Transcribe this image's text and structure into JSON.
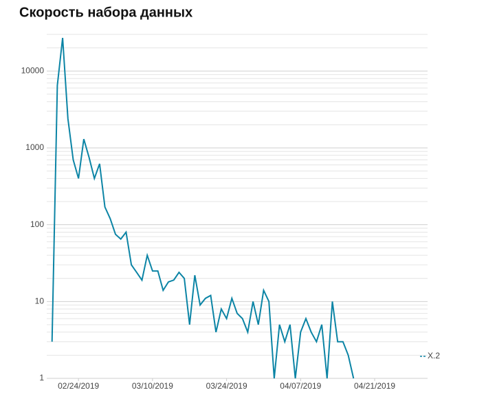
{
  "chart_data": {
    "type": "line",
    "title": "Скорость набора данных",
    "x": [
      "02/19/2019",
      "02/20/2019",
      "02/21/2019",
      "02/22/2019",
      "02/23/2019",
      "02/24/2019",
      "02/25/2019",
      "02/26/2019",
      "02/27/2019",
      "02/28/2019",
      "03/01/2019",
      "03/02/2019",
      "03/03/2019",
      "03/04/2019",
      "03/05/2019",
      "03/06/2019",
      "03/07/2019",
      "03/08/2019",
      "03/09/2019",
      "03/10/2019",
      "03/11/2019",
      "03/12/2019",
      "03/13/2019",
      "03/14/2019",
      "03/15/2019",
      "03/16/2019",
      "03/17/2019",
      "03/18/2019",
      "03/19/2019",
      "03/20/2019",
      "03/21/2019",
      "03/22/2019",
      "03/23/2019",
      "03/24/2019",
      "03/25/2019",
      "03/26/2019",
      "03/27/2019",
      "03/28/2019",
      "03/29/2019",
      "03/30/2019",
      "03/31/2019",
      "04/01/2019",
      "04/02/2019",
      "04/03/2019",
      "04/04/2019",
      "04/05/2019",
      "04/06/2019",
      "04/07/2019",
      "04/08/2019",
      "04/09/2019",
      "04/10/2019",
      "04/11/2019",
      "04/12/2019",
      "04/13/2019",
      "04/14/2019",
      "04/15/2019",
      "04/16/2019",
      "04/17/2019"
    ],
    "series": [
      {
        "name": "X.2",
        "color": "#0b84a5",
        "values": [
          3,
          6500,
          27000,
          2400,
          700,
          400,
          1300,
          750,
          400,
          620,
          170,
          120,
          75,
          65,
          80,
          30,
          24,
          19,
          40,
          25,
          25,
          14,
          18,
          19,
          24,
          20,
          5,
          22,
          9,
          11,
          12,
          4,
          8,
          6,
          11,
          7,
          6,
          4,
          10,
          5,
          14,
          10,
          1,
          5,
          3,
          5,
          1,
          4,
          6,
          4,
          3,
          5,
          1,
          10,
          3,
          3,
          2,
          1
        ]
      }
    ],
    "xlim": [
      "02/18/2019",
      "05/01/2019"
    ],
    "xticks": [
      "02/24/2019",
      "03/10/2019",
      "03/24/2019",
      "04/07/2019",
      "04/21/2019"
    ],
    "ylim": [
      1,
      30000
    ],
    "log_y": true,
    "yticks": [
      1,
      10,
      100,
      1000,
      10000
    ],
    "yminorticks": [
      2,
      3,
      4,
      5,
      6,
      7,
      8,
      9,
      20,
      30,
      40,
      50,
      60,
      70,
      80,
      90,
      200,
      300,
      400,
      500,
      600,
      700,
      800,
      900,
      2000,
      3000,
      4000,
      5000,
      6000,
      7000,
      8000,
      9000,
      20000,
      30000
    ],
    "grid": true,
    "legend": "right"
  }
}
